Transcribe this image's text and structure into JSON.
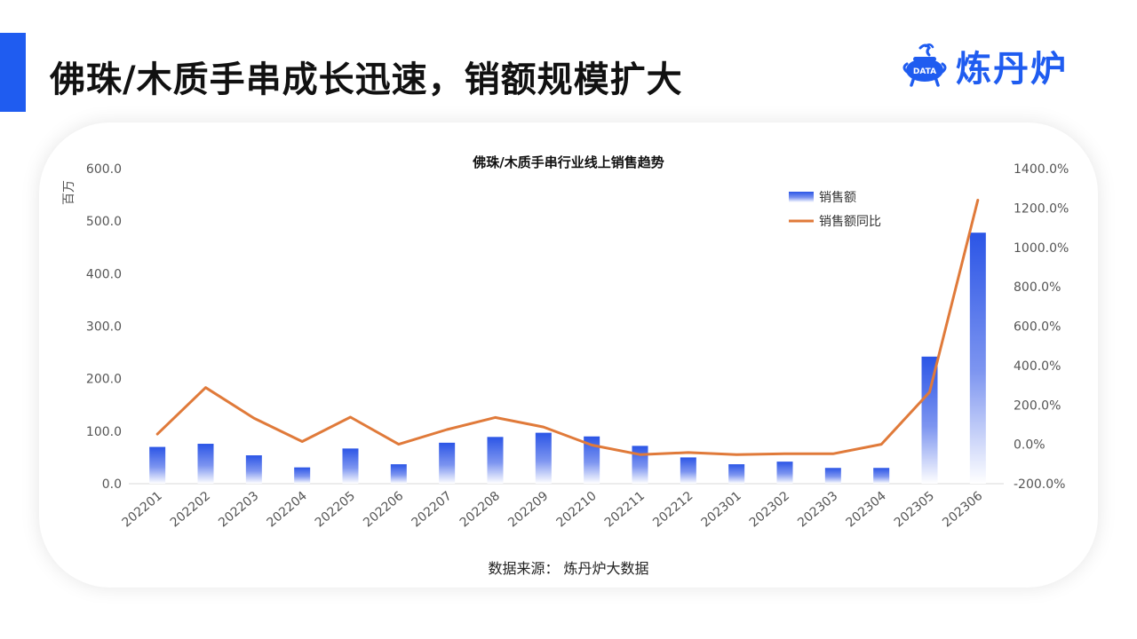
{
  "page": {
    "title": "佛珠/木质手串成长迅速，销额规模扩大",
    "logo_text": "炼丹炉",
    "logo_badge": "DATA",
    "source": "数据来源：  炼丹炉大数据"
  },
  "colors": {
    "accent": "#1f5cf0",
    "bar_top": "#2b55e6",
    "bar_bottom": "#ffffff",
    "line": "#e07a3a"
  },
  "chart_data": {
    "type": "bar",
    "title": "佛珠/木质手串行业线上销售趋势",
    "ylabel": "百万",
    "ylabel_right": "",
    "categories": [
      "202201",
      "202202",
      "202203",
      "202204",
      "202205",
      "202206",
      "202207",
      "202208",
      "202209",
      "202210",
      "202211",
      "202212",
      "202301",
      "202302",
      "202303",
      "202304",
      "202305",
      "202306"
    ],
    "series": [
      {
        "name": "销售额",
        "type": "bar",
        "axis": "left",
        "values": [
          70,
          76,
          54,
          31,
          67,
          37,
          78,
          89,
          97,
          90,
          72,
          50,
          37,
          42,
          30,
          30,
          242,
          478
        ]
      },
      {
        "name": "销售额同比",
        "type": "line",
        "axis": "right",
        "values": [
          52,
          288,
          133,
          14,
          138,
          0,
          75,
          136,
          88,
          -4,
          -52,
          -42,
          -52,
          -48,
          -48,
          0,
          265,
          1240
        ]
      }
    ],
    "ylim": [
      0,
      600
    ],
    "yticks": [
      "0.0",
      "100.0",
      "200.0",
      "300.0",
      "400.0",
      "500.0",
      "600.0"
    ],
    "ylim_right": [
      -200,
      1400
    ],
    "yticks_right": [
      "-200.0%",
      "0.0%",
      "200.0%",
      "400.0%",
      "600.0%",
      "800.0%",
      "1000.0%",
      "1200.0%",
      "1400.0%"
    ],
    "legend_position": "top-right",
    "grid": false
  }
}
